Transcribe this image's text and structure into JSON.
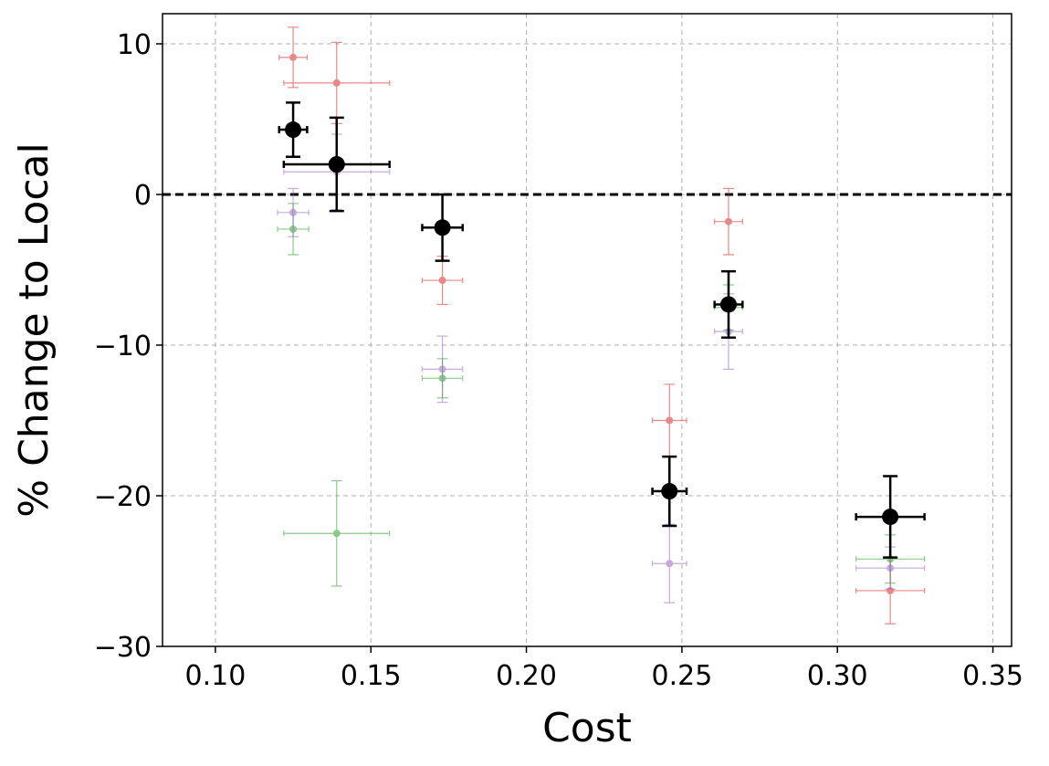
{
  "chart_data": {
    "type": "scatter",
    "title": "",
    "xlabel": "Cost",
    "ylabel": "% Change to Local",
    "xlim": [
      0.083,
      0.356
    ],
    "ylim": [
      -30,
      12
    ],
    "xticks": [
      0.1,
      0.15,
      0.2,
      0.25,
      0.3,
      0.35
    ],
    "xtick_labels": [
      "0.10",
      "0.15",
      "0.20",
      "0.25",
      "0.30",
      "0.35"
    ],
    "yticks": [
      10,
      0,
      -10,
      -20,
      -30
    ],
    "ytick_labels": [
      "10",
      "0",
      "−10",
      "−20",
      "−30"
    ],
    "grid": true,
    "reference_line": {
      "y": 0,
      "style": "dashed",
      "color": "#000000"
    },
    "series": [
      {
        "color": "#d62728",
        "emphasis": "light",
        "points": [
          {
            "x": 0.125,
            "y": 9.1,
            "xerr": 0.0045,
            "yerr": 2.0
          },
          {
            "x": 0.139,
            "y": 7.4,
            "xerr": 0.017,
            "yerr": 2.7
          },
          {
            "x": 0.173,
            "y": -5.7,
            "xerr": 0.0065,
            "yerr": 1.6
          },
          {
            "x": 0.246,
            "y": -15.0,
            "xerr": 0.0055,
            "yerr": 2.4
          },
          {
            "x": 0.265,
            "y": -1.8,
            "xerr": 0.0045,
            "yerr": 2.2
          },
          {
            "x": 0.317,
            "y": -26.3,
            "xerr": 0.011,
            "yerr": 2.2
          }
        ]
      },
      {
        "color": "#2ca02c",
        "emphasis": "light",
        "points": [
          {
            "x": 0.125,
            "y": -2.3,
            "xerr": 0.005,
            "yerr": 1.7
          },
          {
            "x": 0.139,
            "y": -22.5,
            "xerr": 0.017,
            "yerr": 3.5
          },
          {
            "x": 0.173,
            "y": -12.2,
            "xerr": 0.0065,
            "yerr": 1.3
          },
          {
            "x": 0.265,
            "y": -7.5,
            "xerr": 0.0045,
            "yerr": 1.5
          },
          {
            "x": 0.317,
            "y": -24.2,
            "xerr": 0.011,
            "yerr": 1.6
          }
        ]
      },
      {
        "color": "#9467bd",
        "emphasis": "light",
        "points": [
          {
            "x": 0.125,
            "y": -1.2,
            "xerr": 0.005,
            "yerr": 1.6
          },
          {
            "x": 0.139,
            "y": 1.5,
            "xerr": 0.017,
            "yerr": 2.5
          },
          {
            "x": 0.173,
            "y": -11.6,
            "xerr": 0.0065,
            "yerr": 2.2
          },
          {
            "x": 0.246,
            "y": -24.5,
            "xerr": 0.0055,
            "yerr": 2.6
          },
          {
            "x": 0.265,
            "y": -9.1,
            "xerr": 0.0045,
            "yerr": 2.5
          },
          {
            "x": 0.317,
            "y": -24.8,
            "xerr": 0.011,
            "yerr": 1.4
          }
        ]
      },
      {
        "color": "#000000",
        "emphasis": "bold",
        "points": [
          {
            "x": 0.125,
            "y": 4.3,
            "xerr": 0.0045,
            "yerr": 1.8
          },
          {
            "x": 0.139,
            "y": 2.0,
            "xerr": 0.017,
            "yerr": 3.1
          },
          {
            "x": 0.173,
            "y": -2.2,
            "xerr": 0.0065,
            "yerr": 2.2
          },
          {
            "x": 0.246,
            "y": -19.7,
            "xerr": 0.0055,
            "yerr": 2.3
          },
          {
            "x": 0.265,
            "y": -7.3,
            "xerr": 0.0045,
            "yerr": 2.2
          },
          {
            "x": 0.317,
            "y": -21.4,
            "xerr": 0.011,
            "yerr": 2.7
          }
        ]
      }
    ]
  }
}
